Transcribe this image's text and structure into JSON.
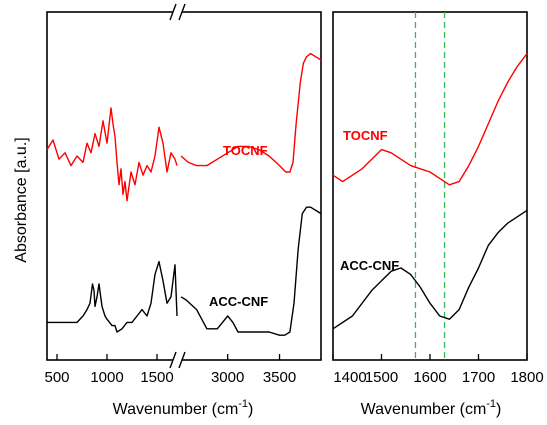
{
  "figure": {
    "ylabel": "Absorbance [a.u.]",
    "left_xlabel_main": "Wavenumber (cm",
    "left_xlabel_sup": "-1",
    "left_xlabel_end": ")",
    "right_xlabel_main": "Wavenumber (cm",
    "right_xlabel_sup": "-1",
    "right_xlabel_end": ")"
  },
  "colors": {
    "tocnf": "#ff0000",
    "acc_cnf": "#000000",
    "marker_lines": "#33bb55",
    "axes": "#000000"
  },
  "chart_data": [
    {
      "type": "line",
      "panel": "left",
      "xlabel": "Wavenumber (cm-1)",
      "ylabel": "Absorbance [a.u.]",
      "axis_break": {
        "from": 1700,
        "to": 2550
      },
      "xlim_segment1": [
        400,
        1700
      ],
      "xlim_segment2": [
        2550,
        3900
      ],
      "ylim": [
        0,
        100
      ],
      "x_ticks": [
        500,
        1000,
        1500,
        3000,
        3500
      ],
      "x_tick_labels": [
        "500",
        "1000",
        "1500",
        "3000",
        "3500"
      ],
      "grid": false,
      "series": [
        {
          "name": "TOCNF",
          "color": "#ff0000",
          "segment1": [
            [
              400,
              62
            ],
            [
              460,
              65
            ],
            [
              520,
              59
            ],
            [
              580,
              61
            ],
            [
              640,
              57
            ],
            [
              700,
              60
            ],
            [
              760,
              58
            ],
            [
              800,
              64
            ],
            [
              840,
              61
            ],
            [
              880,
              67
            ],
            [
              920,
              63
            ],
            [
              960,
              71
            ],
            [
              1000,
              64
            ],
            [
              1040,
              75
            ],
            [
              1060,
              70
            ],
            [
              1080,
              66
            ],
            [
              1100,
              58
            ],
            [
              1120,
              51
            ],
            [
              1140,
              56
            ],
            [
              1160,
              48
            ],
            [
              1180,
              52
            ],
            [
              1200,
              46
            ],
            [
              1240,
              55
            ],
            [
              1280,
              51
            ],
            [
              1320,
              58
            ],
            [
              1360,
              54
            ],
            [
              1400,
              57
            ],
            [
              1440,
              55
            ],
            [
              1480,
              60
            ],
            [
              1520,
              69
            ],
            [
              1560,
              64
            ],
            [
              1600,
              55
            ],
            [
              1640,
              61
            ],
            [
              1680,
              59
            ],
            [
              1700,
              57
            ]
          ],
          "segment2": [
            [
              2550,
              60
            ],
            [
              2620,
              58
            ],
            [
              2700,
              57
            ],
            [
              2800,
              57
            ],
            [
              2900,
              59
            ],
            [
              3000,
              61
            ],
            [
              3100,
              63
            ],
            [
              3200,
              63
            ],
            [
              3300,
              62
            ],
            [
              3400,
              60
            ],
            [
              3500,
              57
            ],
            [
              3560,
              55
            ],
            [
              3600,
              55
            ],
            [
              3630,
              58
            ],
            [
              3660,
              70
            ],
            [
              3700,
              83
            ],
            [
              3730,
              89
            ],
            [
              3760,
              91
            ],
            [
              3800,
              92
            ],
            [
              3850,
              91
            ],
            [
              3900,
              90
            ]
          ],
          "label_position": [
            3000,
            68
          ]
        },
        {
          "name": "ACC-CNF",
          "color": "#000000",
          "segment1": [
            [
              400,
              8
            ],
            [
              500,
              8
            ],
            [
              600,
              8
            ],
            [
              700,
              8
            ],
            [
              760,
              10
            ],
            [
              800,
              12
            ],
            [
              830,
              14
            ],
            [
              855,
              20
            ],
            [
              870,
              18
            ],
            [
              880,
              13
            ],
            [
              900,
              16
            ],
            [
              920,
              20
            ],
            [
              950,
              13
            ],
            [
              980,
              10
            ],
            [
              1000,
              9
            ],
            [
              1050,
              7
            ],
            [
              1080,
              7
            ],
            [
              1100,
              5
            ],
            [
              1150,
              6
            ],
            [
              1200,
              8
            ],
            [
              1250,
              8
            ],
            [
              1300,
              10
            ],
            [
              1350,
              12
            ],
            [
              1400,
              10
            ],
            [
              1440,
              14
            ],
            [
              1480,
              23
            ],
            [
              1520,
              27
            ],
            [
              1560,
              21
            ],
            [
              1600,
              14
            ],
            [
              1640,
              16
            ],
            [
              1660,
              21
            ],
            [
              1680,
              26
            ],
            [
              1700,
              10
            ]
          ],
          "segment2": [
            [
              2550,
              16
            ],
            [
              2600,
              15
            ],
            [
              2700,
              12
            ],
            [
              2800,
              6
            ],
            [
              2900,
              6
            ],
            [
              2950,
              8
            ],
            [
              3000,
              10
            ],
            [
              3050,
              8
            ],
            [
              3100,
              5
            ],
            [
              3200,
              5
            ],
            [
              3300,
              5
            ],
            [
              3400,
              5
            ],
            [
              3500,
              4
            ],
            [
              3550,
              4
            ],
            [
              3600,
              5
            ],
            [
              3640,
              14
            ],
            [
              3680,
              31
            ],
            [
              3720,
              42
            ],
            [
              3760,
              44
            ],
            [
              3800,
              44
            ],
            [
              3850,
              43
            ],
            [
              3900,
              42
            ]
          ],
          "label_position": [
            3000,
            20
          ]
        }
      ]
    },
    {
      "type": "line",
      "panel": "right",
      "xlabel": "Wavenumber (cm-1)",
      "xlim": [
        1400,
        1800
      ],
      "ylim": [
        0,
        100
      ],
      "x_ticks": [
        1400,
        1500,
        1600,
        1700,
        1800
      ],
      "x_tick_labels": [
        "1400",
        "1500",
        "1600",
        "1700",
        "1800"
      ],
      "vertical_markers": [
        1570,
        1630
      ],
      "grid": false,
      "series": [
        {
          "name": "TOCNF",
          "color": "#ff0000",
          "points": [
            [
              1400,
              54
            ],
            [
              1420,
              52
            ],
            [
              1440,
              54
            ],
            [
              1460,
              56
            ],
            [
              1480,
              59
            ],
            [
              1500,
              62
            ],
            [
              1520,
              61
            ],
            [
              1540,
              59
            ],
            [
              1560,
              57
            ],
            [
              1580,
              56
            ],
            [
              1600,
              55
            ],
            [
              1620,
              53
            ],
            [
              1640,
              51
            ],
            [
              1660,
              52
            ],
            [
              1680,
              57
            ],
            [
              1700,
              63
            ],
            [
              1720,
              70
            ],
            [
              1740,
              77
            ],
            [
              1760,
              83
            ],
            [
              1780,
              88
            ],
            [
              1800,
              92
            ]
          ],
          "label_position": [
            1450,
            65
          ]
        },
        {
          "name": "ACC-CNF",
          "color": "#000000",
          "points": [
            [
              1400,
              6
            ],
            [
              1440,
              10
            ],
            [
              1480,
              18
            ],
            [
              1520,
              24
            ],
            [
              1540,
              25
            ],
            [
              1560,
              23
            ],
            [
              1580,
              19
            ],
            [
              1600,
              14
            ],
            [
              1620,
              10
            ],
            [
              1640,
              9
            ],
            [
              1660,
              12
            ],
            [
              1680,
              19
            ],
            [
              1700,
              25
            ],
            [
              1720,
              32
            ],
            [
              1740,
              36
            ],
            [
              1760,
              39
            ],
            [
              1780,
              41
            ],
            [
              1800,
              43
            ]
          ],
          "label_position": [
            1450,
            30
          ]
        }
      ]
    }
  ],
  "series_labels": {
    "tocnf_left": "TOCNF",
    "acc_left": "ACC-CNF",
    "tocnf_right": "TOCNF",
    "acc_right": "ACC-CNF"
  }
}
